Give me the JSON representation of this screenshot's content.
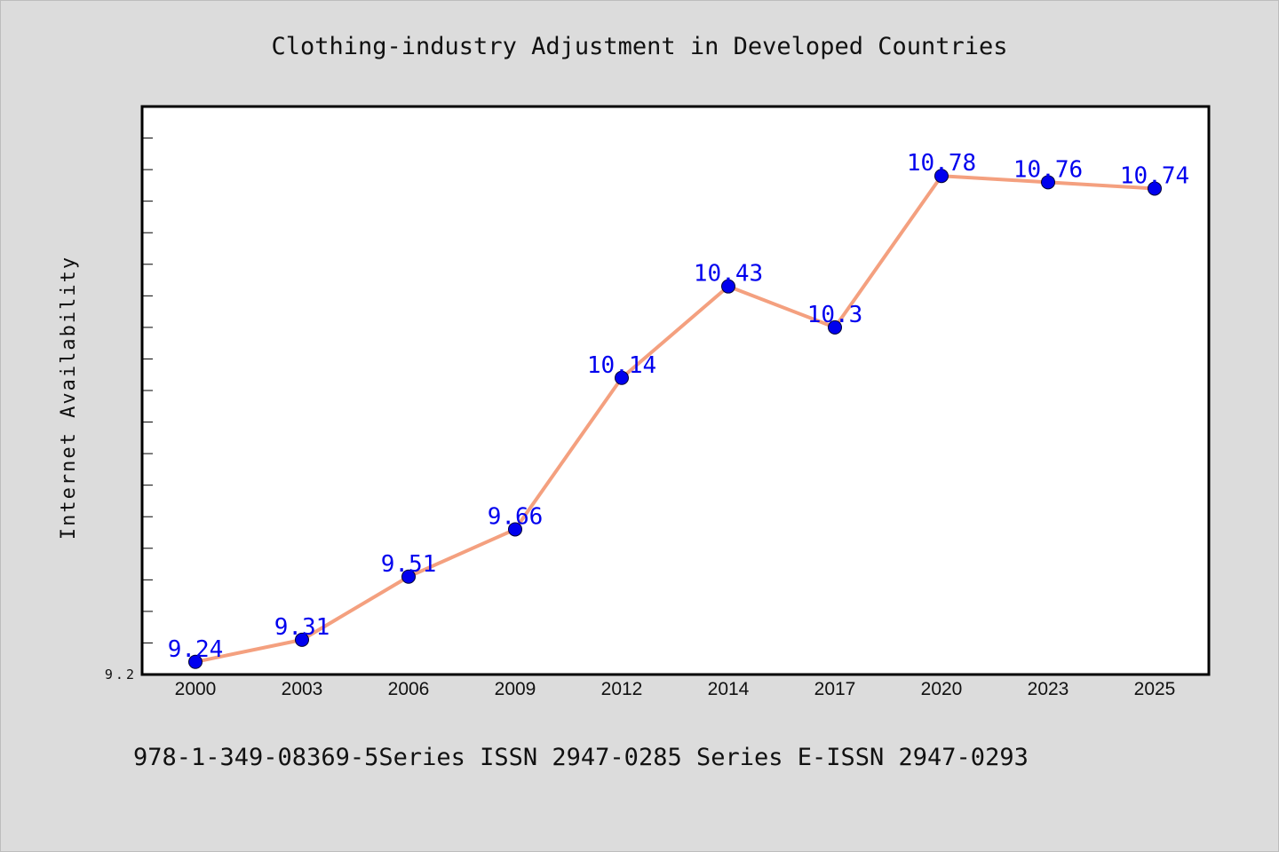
{
  "chart_data": {
    "type": "line",
    "title": "Clothing-industry Adjustment in Developed Countries",
    "xlabel": "",
    "ylabel": "Internet Availability",
    "categories": [
      "2000",
      "2003",
      "2006",
      "2009",
      "2012",
      "2014",
      "2017",
      "2020",
      "2023",
      "2025"
    ],
    "series": [
      {
        "values": [
          9.24,
          9.31,
          9.51,
          9.66,
          10.14,
          10.43,
          10.3,
          10.78,
          10.76,
          10.74
        ]
      }
    ],
    "data_labels": [
      "9.24",
      "9.31",
      "9.51",
      "9.66",
      "10.14",
      "10.43",
      "10.3",
      "10.78",
      "10.76",
      "10.74"
    ],
    "ylim": [
      9.2,
      11.0
    ],
    "y_tick_labels": [
      "9.2"
    ],
    "grid": false,
    "legend": "none",
    "colors": {
      "line": "#f4a07f",
      "marker": "#0000ee",
      "data_label": "#0000ee",
      "plot_background": "#ffffff",
      "page_background": "#dcdcdc"
    }
  },
  "footer": "978-1-349-08369-5Series ISSN 2947-0285 Series E-ISSN 2947-0293"
}
